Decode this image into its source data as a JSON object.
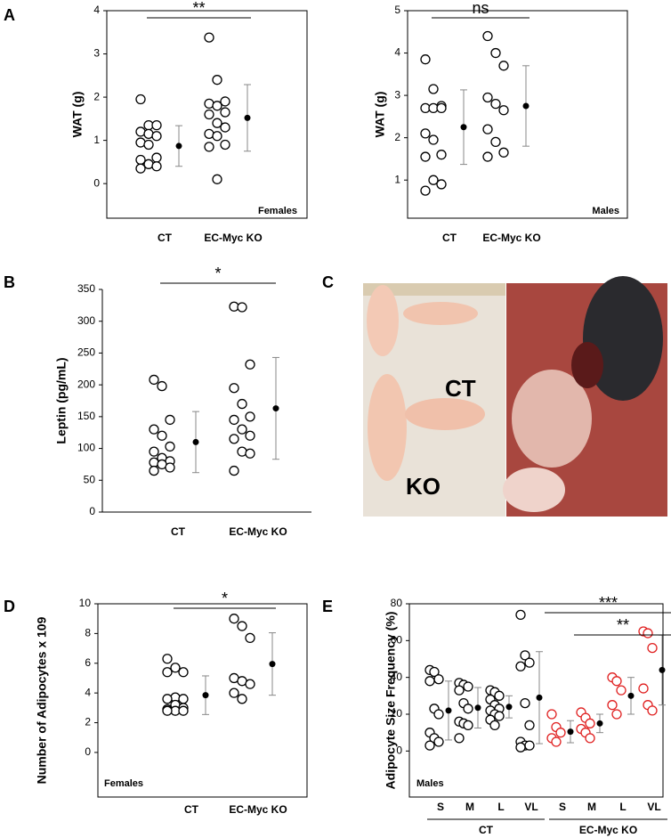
{
  "chart_data": [
    {
      "type": "strip",
      "panel": "A",
      "ylabel": "WAT (g)",
      "categories": [
        "CT",
        "EC-Myc KO"
      ],
      "points": [
        [
          1.95,
          1.35,
          1.35,
          1.2,
          1.15,
          1.1,
          0.95,
          0.9,
          0.6,
          0.55,
          0.45,
          0.4,
          0.35
        ],
        [
          3.38,
          2.4,
          1.9,
          1.85,
          1.8,
          1.65,
          1.6,
          1.4,
          1.3,
          1.15,
          1.1,
          0.9,
          0.85,
          0.1
        ]
      ],
      "means": [
        0.87,
        1.52
      ],
      "errors": [
        0.47,
        0.77
      ],
      "point_colors": [
        "#000000",
        "#000000"
      ],
      "ylim": [
        -0.8,
        4
      ],
      "yticks": [
        0,
        1,
        2,
        3,
        4
      ],
      "frame": true,
      "significance": [
        {
          "label": "**",
          "from": 0,
          "to": 1
        }
      ],
      "note": "Females"
    },
    {
      "type": "strip",
      "ylabel": "WAT (g)",
      "categories": [
        "CT",
        "EC-Myc KO"
      ],
      "points": [
        [
          3.85,
          3.15,
          2.75,
          2.7,
          2.7,
          2.7,
          2.1,
          1.95,
          1.6,
          1.55,
          1.0,
          0.9,
          0.75
        ],
        [
          4.4,
          4.0,
          3.7,
          2.95,
          2.8,
          2.65,
          2.2,
          1.9,
          1.65,
          1.55
        ]
      ],
      "means": [
        2.25,
        2.75
      ],
      "errors": [
        0.88,
        0.95
      ],
      "point_colors": [
        "#000000",
        "#000000"
      ],
      "ylim": [
        0.1,
        5
      ],
      "yticks": [
        1,
        2,
        3,
        4,
        5
      ],
      "frame": true,
      "significance": [
        {
          "label": "ns",
          "from": 0,
          "to": 1
        }
      ],
      "note": "Males"
    },
    {
      "type": "strip",
      "panel": "B",
      "ylabel": "Leptin (pg/mL)",
      "categories": [
        "CT",
        "EC-Myc KO"
      ],
      "points": [
        [
          208,
          198,
          145,
          130,
          120,
          103,
          95,
          85,
          80,
          78,
          75,
          70,
          65
        ],
        [
          323,
          322,
          232,
          195,
          170,
          150,
          145,
          130,
          120,
          115,
          95,
          92,
          65
        ]
      ],
      "means": [
        110,
        163
      ],
      "errors": [
        48,
        80
      ],
      "point_colors": [
        "#000000",
        "#000000"
      ],
      "ylim": [
        0,
        350
      ],
      "yticks": [
        0,
        50,
        100,
        150,
        200,
        250,
        300,
        350
      ],
      "frame": false,
      "significance": [
        {
          "label": "*",
          "from": 0,
          "to": 1
        }
      ]
    },
    {
      "type": "strip",
      "panel": "D",
      "ylabel": "Number of Adipocytes x 109",
      "categories": [
        "CT",
        "EC-Myc KO"
      ],
      "points": [
        [
          6.3,
          5.7,
          5.4,
          5.4,
          3.7,
          3.6,
          3.6,
          3.2,
          3.0,
          2.9,
          2.8,
          2.8,
          2.8
        ],
        [
          9.0,
          8.5,
          7.7,
          5.0,
          4.8,
          4.6,
          4.0,
          3.6
        ]
      ],
      "means": [
        3.85,
        5.95
      ],
      "errors": [
        1.3,
        2.1
      ],
      "point_colors": [
        "#000000",
        "#000000"
      ],
      "ylim": [
        -3,
        10
      ],
      "yticks": [
        0,
        2,
        4,
        6,
        8,
        10
      ],
      "frame": true,
      "significance": [
        {
          "label": "*",
          "from": 0,
          "to": 1
        }
      ],
      "note": "Females"
    },
    {
      "type": "strip",
      "panel": "E",
      "ylabel": "Adipocyte Size Frequency (%)",
      "categories": [
        "S",
        "M",
        "L",
        "VL",
        "S",
        "M",
        "L",
        "VL"
      ],
      "group_labels": [
        "CT",
        "EC-Myc KO"
      ],
      "points": [
        [
          44,
          43,
          39,
          38,
          23,
          20,
          10,
          7,
          5,
          3
        ],
        [
          37,
          36,
          35,
          33,
          26,
          23,
          16,
          15,
          14,
          7
        ],
        [
          33,
          32,
          30,
          28,
          25,
          23,
          22,
          20,
          19,
          17,
          14
        ],
        [
          74,
          52,
          48,
          46,
          26,
          14,
          5,
          3,
          3,
          2
        ],
        [
          20,
          13,
          10,
          7,
          5
        ],
        [
          21,
          18,
          15,
          12,
          10,
          7
        ],
        [
          40,
          38,
          33,
          25,
          20
        ],
        [
          65,
          64,
          56,
          34,
          25,
          22
        ]
      ],
      "means": [
        22,
        23.5,
        24,
        29,
        10.5,
        15,
        30,
        44
      ],
      "errors": [
        16,
        11,
        6,
        25,
        6,
        5,
        10,
        19
      ],
      "point_colors": [
        "#000000",
        "#000000",
        "#000000",
        "#000000",
        "#e02020",
        "#e02020",
        "#e02020",
        "#e02020"
      ],
      "ylim": [
        -25,
        80
      ],
      "yticks": [
        0,
        20,
        40,
        60,
        80
      ],
      "frame": true,
      "significance": [
        {
          "label": "***",
          "from": 4,
          "to": 7
        },
        {
          "label": "**",
          "from": 5,
          "to": 7
        }
      ],
      "note": "Males"
    }
  ],
  "photo": {
    "panel": "C",
    "labels": [
      "CT",
      "KO"
    ]
  }
}
